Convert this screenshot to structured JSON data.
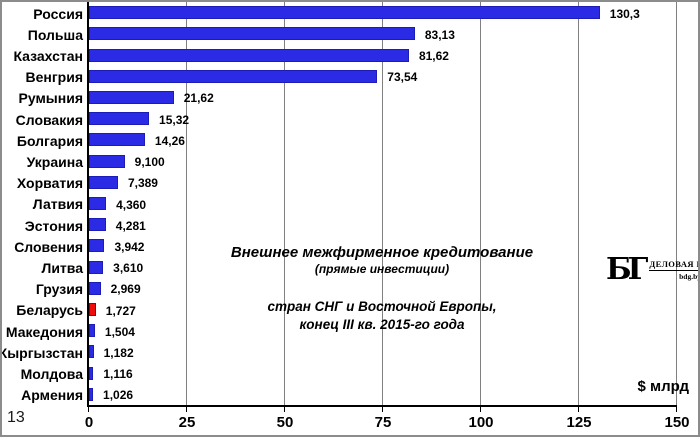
{
  "page": {
    "corner_number": "13"
  },
  "chart_data": {
    "type": "bar",
    "orientation": "horizontal",
    "title": "Внешнее межфирменное кредитование",
    "subtitle": "(прямые инвестиции)",
    "note_line1": "стран СНГ и Восточной Европы,",
    "note_line2": "конец III кв. 2015-го года",
    "xlabel": "$ млрд",
    "xlim": [
      0,
      150
    ],
    "xticks": [
      0,
      25,
      50,
      75,
      100,
      125,
      150
    ],
    "grid": true,
    "categories": [
      "Россия",
      "Польша",
      "Казахстан",
      "Венгрия",
      "Румыния",
      "Словакия",
      "Болгария",
      "Украина",
      "Хорватия",
      "Латвия",
      "Эстония",
      "Словения",
      "Литва",
      "Грузия",
      "Беларусь",
      "Македония",
      "Кыргызстан",
      "Молдова",
      "Армения"
    ],
    "values": [
      130.3,
      83.13,
      81.62,
      73.54,
      21.62,
      15.32,
      14.26,
      9.1,
      7.389,
      4.36,
      4.281,
      3.942,
      3.61,
      2.969,
      1.727,
      1.504,
      1.182,
      1.116,
      1.026
    ],
    "value_labels": [
      "130,3",
      "83,13",
      "81,62",
      "73,54",
      "21,62",
      "15,32",
      "14,26",
      "9,100",
      "7,389",
      "4,360",
      "4,281",
      "3,942",
      "3,610",
      "2,969",
      "1,727",
      "1,504",
      "1,182",
      "1,116",
      "1,026"
    ],
    "highlight_index": 14,
    "colors": {
      "bar_fill": "#2b2be6",
      "bar_border": "#1c1cb8",
      "highlight_fill": "#ee0c0c",
      "highlight_border": "#990000",
      "gridline": "#808080",
      "axis": "#000000"
    }
  },
  "logo": {
    "monogram": "БГ",
    "name": "ДЕЛОВАЯ ГАЗЕТА",
    "site": "bdg.by"
  }
}
